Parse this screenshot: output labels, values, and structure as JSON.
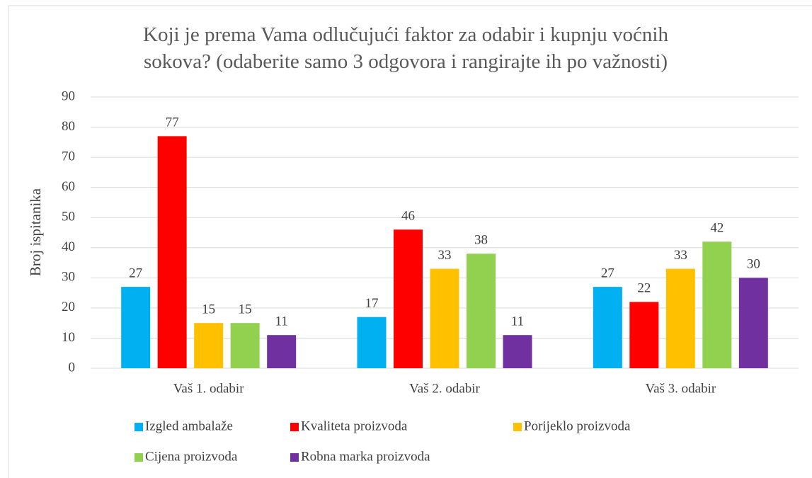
{
  "chart_data": {
    "type": "bar",
    "title": "Koji je prema Vama odlučujući faktor za odabir i kupnju voćnih sokova? (odaberite samo 3 odgovora i rangirajte ih po važnosti)",
    "y_label": "Broj ispitanika",
    "categories": [
      "Vaš 1. odabir",
      "Vaš 2. odabir",
      "Vaš 3. odabir"
    ],
    "series": [
      {
        "name": "Izgled ambalaže",
        "color": "#00b0f0",
        "values": [
          27,
          17,
          27
        ]
      },
      {
        "name": "Kvaliteta proizvoda",
        "color": "#ff0000",
        "values": [
          77,
          46,
          22
        ]
      },
      {
        "name": "Porijeklo proizvoda",
        "color": "#ffc000",
        "values": [
          15,
          33,
          33
        ]
      },
      {
        "name": "Cijena proizvoda",
        "color": "#92d050",
        "values": [
          15,
          38,
          42
        ]
      },
      {
        "name": "Robna marka proizvoda",
        "color": "#7030a0",
        "values": [
          11,
          11,
          30
        ]
      }
    ],
    "ylim": [
      0,
      90
    ],
    "yticks": [
      0,
      10,
      20,
      30,
      40,
      50,
      60,
      70,
      80,
      90
    ],
    "grid": true,
    "legend": "bottom"
  }
}
